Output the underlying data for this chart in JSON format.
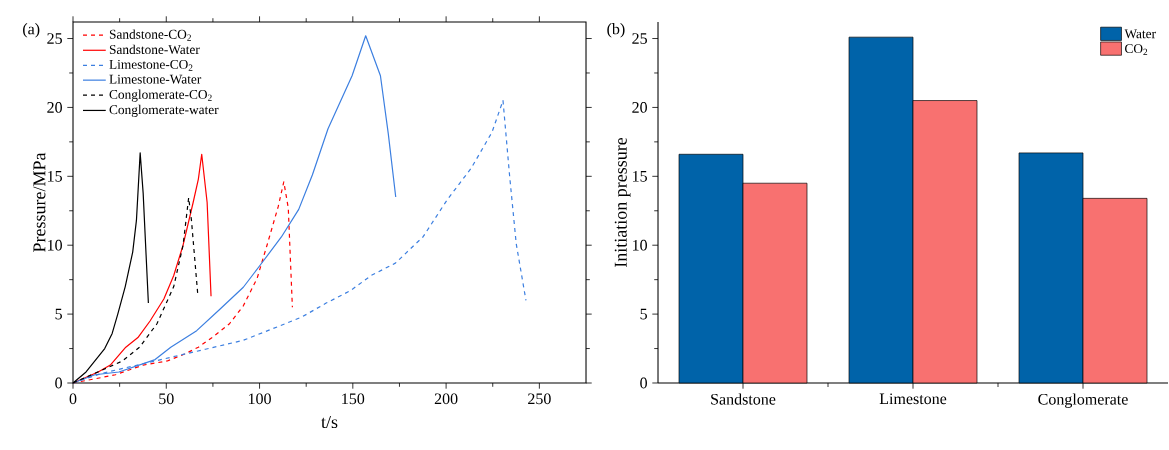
{
  "chart_data": [
    {
      "type": "line",
      "annotations": [
        "(a)"
      ],
      "xlabel": "t/s",
      "ylabel": "Pressure/MPa",
      "xlim": [
        0,
        275
      ],
      "ylim": [
        0,
        26.2
      ],
      "xticks": [
        0,
        50,
        100,
        150,
        200,
        250
      ],
      "yticks": [
        0,
        5,
        10,
        15,
        20,
        25
      ],
      "legend": "top left",
      "marker": "none",
      "series": [
        {
          "name": "Sandstone-CO$_{2}$",
          "color": "#ff0000",
          "line_style": "dashed",
          "x": [
            0,
            11.7,
            22.8,
            37.6,
            50.6,
            59.8,
            67.2,
            74.6,
            83.9,
            91.3,
            98.7,
            104,
            110,
            113,
            115.4,
            117.6
          ],
          "values": [
            0,
            0.3,
            0.6,
            1.3,
            1.6,
            2.1,
            2.6,
            3.3,
            4.3,
            5.6,
            7.6,
            10,
            12.8,
            14.6,
            12.7,
            5.5
          ]
        },
        {
          "name": "Sandstone-Water",
          "color": "#ff0000",
          "line_style": "solid",
          "x": [
            0,
            13.5,
            20,
            28.3,
            34.8,
            41.3,
            48.7,
            54,
            59,
            64.4,
            67.2,
            69,
            71.9,
            74
          ],
          "values": [
            0,
            0.8,
            1.3,
            2.6,
            3.3,
            4.5,
            6.1,
            7.8,
            10,
            13.1,
            14.8,
            16.6,
            13.1,
            6.3
          ]
        },
        {
          "name": "Limestone-CO$_{2}$",
          "color": "#3c7fe0",
          "line_style": "dashed",
          "x": [
            0,
            15.4,
            44,
            71,
            91.3,
            110,
            122.8,
            135.7,
            148.7,
            159.8,
            172.8,
            187.6,
            200.6,
            213.5,
            224.6,
            230.5,
            234,
            237.6,
            242.8
          ],
          "values": [
            0,
            0.7,
            1.6,
            2.45,
            3.1,
            4.1,
            4.8,
            5.8,
            6.7,
            7.8,
            8.7,
            10.6,
            13.3,
            15.6,
            18.2,
            20.5,
            15.1,
            10.1,
            6
          ]
        },
        {
          "name": "Limestone-Water",
          "color": "#3c7fe0",
          "line_style": "solid",
          "x": [
            0,
            11.7,
            24.6,
            44,
            52.4,
            66.3,
            78.3,
            91.3,
            100.6,
            111.7,
            121,
            128.3,
            136.7,
            149.6,
            156.9,
            164.8,
            169,
            173
          ],
          "values": [
            0,
            0.6,
            0.8,
            1.7,
            2.6,
            3.8,
            5.3,
            6.95,
            8.6,
            10.6,
            12.6,
            15.1,
            18.45,
            22.3,
            25.2,
            22.3,
            18.1,
            13.5
          ]
        },
        {
          "name": "Conglomerate-CO$_{2}$",
          "color": "#000000",
          "line_style": "dashed",
          "x": [
            0,
            11.7,
            26.5,
            35.7,
            45,
            54,
            59,
            62,
            63.5,
            66.9
          ],
          "values": [
            0,
            0.7,
            1.6,
            2.6,
            4.3,
            7,
            10,
            13.45,
            11.8,
            6.4
          ]
        },
        {
          "name": "Conglomerate-water",
          "color": "#000000",
          "line_style": "solid",
          "x": [
            0,
            7,
            17,
            21,
            24,
            28,
            32,
            34,
            36,
            37.6,
            40.4
          ],
          "values": [
            0,
            0.8,
            2.5,
            3.6,
            5,
            7,
            9.5,
            11.8,
            16.7,
            13.8,
            5.8
          ]
        }
      ]
    },
    {
      "type": "bar",
      "annotations": [
        "(b)"
      ],
      "ylabel": "Initiation pressure",
      "ylim": [
        0,
        26.2
      ],
      "yticks": [
        0,
        5,
        10,
        15,
        20,
        25
      ],
      "legend": "top right",
      "categories": [
        "Sandstone",
        "Limestone",
        "Conglomerate"
      ],
      "series": [
        {
          "name": "Water",
          "color": "#0063a9",
          "values": [
            16.6,
            25.1,
            16.7
          ]
        },
        {
          "name": "CO$_{2}$",
          "color": "#f87170",
          "values": [
            14.5,
            20.5,
            13.4
          ]
        }
      ]
    }
  ]
}
